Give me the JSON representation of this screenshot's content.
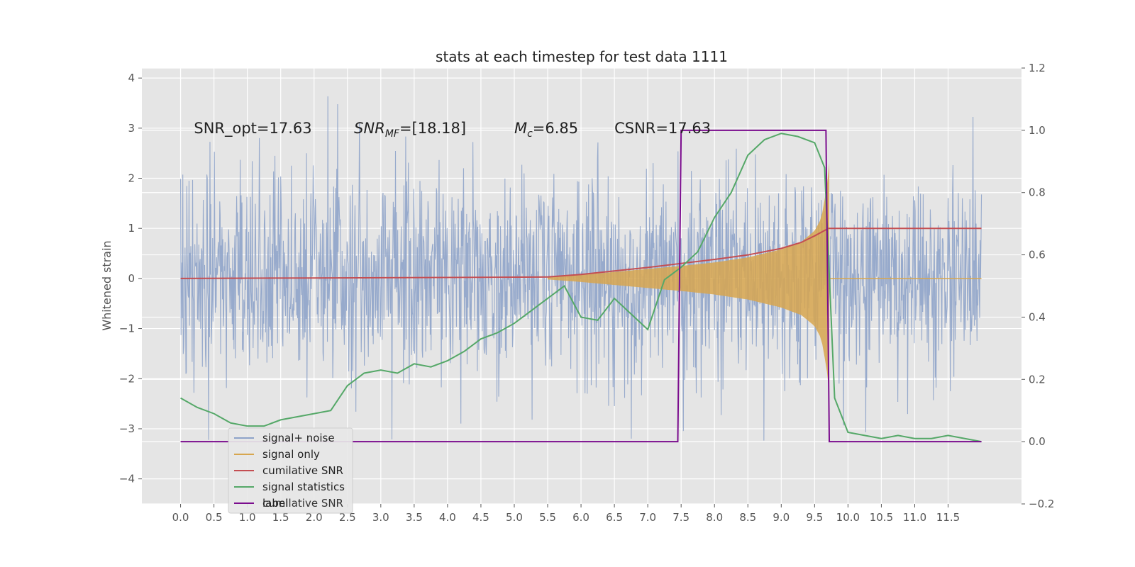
{
  "chart_data": {
    "type": "line",
    "title": "stats at each timestep for test data 1111",
    "ylabel": "Whitened strain",
    "xlim": [
      -0.58,
      12.6
    ],
    "ylim": [
      -4.5,
      4.2
    ],
    "ylim_right": [
      -0.2,
      1.2
    ],
    "x_ticks": [
      "0.0",
      "0.5",
      "1.0",
      "1.5",
      "2.0",
      "2.5",
      "3.0",
      "3.5",
      "4.0",
      "4.5",
      "5.0",
      "5.5",
      "6.0",
      "6.5",
      "7.0",
      "7.5",
      "8.0",
      "8.5",
      "9.0",
      "9.5",
      "10.0",
      "10.5",
      "11.0",
      "11.5"
    ],
    "y_ticks_left": [
      "-4",
      "-3",
      "-2",
      "-1",
      "0",
      "1",
      "2",
      "3",
      "4"
    ],
    "y_ticks_right": [
      "-0.2",
      "0.0",
      "0.2",
      "0.4",
      "0.6",
      "0.8",
      "1.0",
      "1.2"
    ],
    "grid": true,
    "annotations": [
      {
        "prefix": "SNR_opt=17.63",
        "x": 0.2,
        "y": 3.0
      },
      {
        "prefix": "SNR",
        "sub": "MF",
        "suffix": "=[18.18]",
        "x": 2.6,
        "y": 3.0
      },
      {
        "prefix": "M",
        "sub": "c",
        "suffix": "=6.85",
        "x": 5.0,
        "y": 3.0
      },
      {
        "prefix": "CSNR=17.63",
        "x": 6.5,
        "y": 3.0
      }
    ],
    "legend": {
      "placement": "lower-left",
      "entries": [
        "signal+ noise",
        "signal only",
        "cumilative SNR",
        "signal statistics",
        "label"
      ],
      "ghost_text": "cumilative SNR"
    },
    "series": [
      {
        "name": "signal+ noise",
        "color": "#8ea3c9",
        "axis": "left",
        "x_range": [
          0.0,
          12.0
        ],
        "sigma": 1.0,
        "approx_min": -4.1,
        "approx_max": 3.8
      },
      {
        "name": "signal only",
        "color": "#d7a64f",
        "axis": "left",
        "envelope_x": [
          5.5,
          6.0,
          6.5,
          7.0,
          7.5,
          8.0,
          8.5,
          9.0,
          9.3,
          9.5,
          9.6,
          9.68,
          9.72
        ],
        "envelope_y": [
          0.02,
          0.07,
          0.13,
          0.19,
          0.25,
          0.32,
          0.42,
          0.58,
          0.73,
          0.95,
          1.2,
          1.8,
          2.3
        ]
      },
      {
        "name": "cumilative SNR",
        "color": "#c44e52",
        "axis": "left",
        "x": [
          0.0,
          2.0,
          4.0,
          5.5,
          6.0,
          6.5,
          7.0,
          7.5,
          8.0,
          8.5,
          9.0,
          9.3,
          9.5,
          9.68,
          9.7,
          12.0
        ],
        "y": [
          0.0,
          0.01,
          0.02,
          0.03,
          0.08,
          0.15,
          0.22,
          0.3,
          0.38,
          0.47,
          0.6,
          0.72,
          0.85,
          0.98,
          1.0,
          1.0
        ]
      },
      {
        "name": "signal statistics",
        "color": "#55a868",
        "axis": "right",
        "x": [
          0.0,
          0.25,
          0.5,
          0.75,
          1.0,
          1.25,
          1.5,
          1.75,
          2.0,
          2.25,
          2.5,
          2.75,
          3.0,
          3.25,
          3.5,
          3.75,
          4.0,
          4.25,
          4.5,
          4.75,
          5.0,
          5.25,
          5.5,
          5.75,
          6.0,
          6.25,
          6.5,
          6.75,
          7.0,
          7.25,
          7.5,
          7.75,
          8.0,
          8.25,
          8.5,
          8.75,
          9.0,
          9.25,
          9.5,
          9.65,
          9.8,
          10.0,
          10.25,
          10.5,
          10.75,
          11.0,
          11.25,
          11.5,
          11.75,
          12.0
        ],
        "y": [
          0.14,
          0.11,
          0.09,
          0.06,
          0.05,
          0.05,
          0.07,
          0.08,
          0.09,
          0.1,
          0.18,
          0.22,
          0.23,
          0.22,
          0.25,
          0.24,
          0.26,
          0.29,
          0.33,
          0.35,
          0.38,
          0.42,
          0.46,
          0.5,
          0.4,
          0.39,
          0.46,
          0.41,
          0.36,
          0.52,
          0.56,
          0.61,
          0.72,
          0.8,
          0.92,
          0.97,
          0.99,
          0.98,
          0.96,
          0.88,
          0.14,
          0.03,
          0.02,
          0.01,
          0.02,
          0.01,
          0.01,
          0.02,
          0.01,
          0.0
        ]
      },
      {
        "name": "label",
        "color": "#7b0d8e",
        "axis": "right",
        "x": [
          0.0,
          7.45,
          7.5,
          9.67,
          9.72,
          12.0
        ],
        "y": [
          0.0,
          0.0,
          1.0,
          1.0,
          0.0,
          0.0
        ]
      }
    ]
  }
}
